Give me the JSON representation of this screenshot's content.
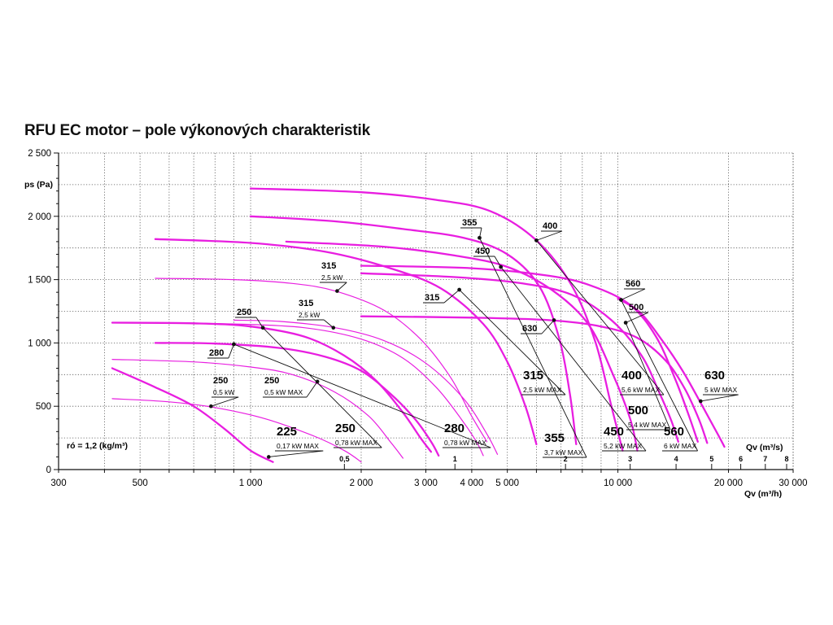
{
  "chart_data": {
    "type": "line",
    "title": "RFU EC motor – pole výkonových charakteristik",
    "ylabel": "ps (Pa)",
    "xlabel": "Qv (m³/h)",
    "xlabel2": "Qv (m³/s)",
    "xscale": "log",
    "xlim": [
      300,
      30000
    ],
    "ylim": [
      0,
      2500
    ],
    "grid": true,
    "note": "ró = 1,2 (kg/m³)",
    "y_ticks": [
      {
        "v": 0,
        "label": "0"
      },
      {
        "v": 500,
        "label": "500"
      },
      {
        "v": 1000,
        "label": "1 000"
      },
      {
        "v": 1500,
        "label": "1 500"
      },
      {
        "v": 2000,
        "label": "2 000"
      },
      {
        "v": 2500,
        "label": "2 500"
      }
    ],
    "x_ticks": [
      {
        "v": 300,
        "label": "300"
      },
      {
        "v": 500,
        "label": "500"
      },
      {
        "v": 1000,
        "label": "1 000"
      },
      {
        "v": 2000,
        "label": "2 000"
      },
      {
        "v": 3000,
        "label": "3 000"
      },
      {
        "v": 4000,
        "label": "4 000"
      },
      {
        "v": 5000,
        "label": "5 000"
      },
      {
        "v": 10000,
        "label": "10 000"
      },
      {
        "v": 20000,
        "label": "20 000"
      },
      {
        "v": 30000,
        "label": "30 000"
      }
    ],
    "x2_ticks": [
      {
        "v": 1800,
        "label": "0,5"
      },
      {
        "v": 3600,
        "label": "1"
      },
      {
        "v": 7200,
        "label": "2"
      },
      {
        "v": 10800,
        "label": "3"
      },
      {
        "v": 14400,
        "label": "4"
      },
      {
        "v": 18000,
        "label": "5"
      },
      {
        "v": 21600,
        "label": "6"
      },
      {
        "v": 25200,
        "label": "7"
      },
      {
        "v": 28800,
        "label": "8"
      }
    ],
    "series": [
      {
        "name": "225",
        "motor": "0,17 kW MAX",
        "weight": "thick",
        "points": [
          [
            420,
            800
          ],
          [
            550,
            650
          ],
          [
            700,
            500
          ],
          [
            850,
            320
          ],
          [
            1000,
            150
          ],
          [
            1150,
            60
          ]
        ],
        "marker": [
          1120,
          100
        ]
      },
      {
        "name": "250",
        "motor": "0,5 kW",
        "weight": "thin",
        "points": [
          [
            420,
            560
          ],
          [
            600,
            535
          ],
          [
            800,
            490
          ],
          [
            1100,
            400
          ],
          [
            1500,
            260
          ],
          [
            1800,
            150
          ],
          [
            2000,
            60
          ]
        ],
        "marker": [
          780,
          500
        ]
      },
      {
        "name": "250",
        "motor": "0,5 kW MAX",
        "weight": "thin",
        "points": [
          [
            420,
            870
          ],
          [
            700,
            850
          ],
          [
            1000,
            810
          ],
          [
            1300,
            750
          ],
          [
            1700,
            610
          ],
          [
            2100,
            420
          ],
          [
            2400,
            220
          ],
          [
            2600,
            90
          ]
        ],
        "marker": [
          1520,
          695
        ]
      },
      {
        "name": "250",
        "motor": "0,78 kW MAX",
        "weight": "thick",
        "points": [
          [
            420,
            1160
          ],
          [
            700,
            1155
          ],
          [
            1000,
            1130
          ],
          [
            1400,
            1050
          ],
          [
            1800,
            900
          ],
          [
            2200,
            700
          ],
          [
            2600,
            450
          ],
          [
            2900,
            250
          ],
          [
            3100,
            140
          ]
        ],
        "marker": [
          1080,
          1120
        ]
      },
      {
        "name": "280",
        "motor": "0,78 kW MAX",
        "weight": "thick",
        "points": [
          [
            550,
            1000
          ],
          [
            800,
            995
          ],
          [
            1200,
            960
          ],
          [
            1600,
            890
          ],
          [
            2000,
            780
          ],
          [
            2400,
            600
          ],
          [
            2800,
            400
          ],
          [
            3100,
            220
          ],
          [
            3250,
            110
          ]
        ],
        "marker": [
          900,
          990
        ]
      },
      {
        "name": "280",
        "motor": "",
        "weight": "thin",
        "points": [
          [
            550,
            1160
          ],
          [
            900,
            1150
          ],
          [
            1400,
            1120
          ],
          [
            2000,
            1030
          ],
          [
            2600,
            880
          ],
          [
            3200,
            650
          ],
          [
            3700,
            420
          ],
          [
            4100,
            230
          ],
          [
            4300,
            110
          ]
        ],
        "marker": null
      },
      {
        "name": "315",
        "motor": "2,5 kW",
        "weight": "thin",
        "points": [
          [
            550,
            1510
          ],
          [
            900,
            1500
          ],
          [
            1300,
            1470
          ],
          [
            1700,
            1410
          ],
          [
            2300,
            1260
          ],
          [
            2900,
            1030
          ],
          [
            3500,
            730
          ],
          [
            4000,
            420
          ],
          [
            4400,
            220
          ]
        ],
        "marker": [
          1720,
          1410
        ]
      },
      {
        "name": "315",
        "motor": "2,5 kW",
        "weight": "thin",
        "points": [
          [
            900,
            1180
          ],
          [
            1200,
            1170
          ],
          [
            1700,
            1120
          ],
          [
            2300,
            1020
          ],
          [
            3000,
            840
          ],
          [
            3800,
            560
          ],
          [
            4400,
            280
          ],
          [
            4700,
            120
          ]
        ],
        "marker": [
          1680,
          1120
        ]
      },
      {
        "name": "315",
        "motor": "2,5 kW MAX",
        "weight": "thick",
        "points": [
          [
            550,
            1820
          ],
          [
            1000,
            1790
          ],
          [
            1600,
            1720
          ],
          [
            2400,
            1590
          ],
          [
            3300,
            1430
          ],
          [
            4300,
            1150
          ],
          [
            5000,
            850
          ],
          [
            5600,
            500
          ],
          [
            6000,
            200
          ]
        ],
        "marker": [
          3700,
          1420
        ]
      },
      {
        "name": "355",
        "motor": "3,7 kW MAX",
        "weight": "thick",
        "points": [
          [
            1000,
            2000
          ],
          [
            1700,
            1960
          ],
          [
            2600,
            1900
          ],
          [
            3800,
            1830
          ],
          [
            5000,
            1700
          ],
          [
            6100,
            1450
          ],
          [
            6900,
            1050
          ],
          [
            7400,
            600
          ],
          [
            7700,
            200
          ]
        ],
        "marker": [
          4200,
          1830
        ]
      },
      {
        "name": "400",
        "motor": "5,6 kW MAX",
        "weight": "thick",
        "points": [
          [
            1000,
            2220
          ],
          [
            2000,
            2190
          ],
          [
            3200,
            2130
          ],
          [
            4500,
            2040
          ],
          [
            6000,
            1810
          ],
          [
            7500,
            1450
          ],
          [
            8700,
            1000
          ],
          [
            9600,
            500
          ],
          [
            10300,
            150
          ]
        ],
        "marker": [
          6000,
          1810
        ]
      },
      {
        "name": "450",
        "motor": "5,2 kW MAX",
        "weight": "thick",
        "points": [
          [
            1250,
            1800
          ],
          [
            2300,
            1760
          ],
          [
            3600,
            1690
          ],
          [
            5000,
            1600
          ],
          [
            6600,
            1420
          ],
          [
            8300,
            1150
          ],
          [
            9700,
            750
          ],
          [
            10800,
            400
          ],
          [
            11300,
            150
          ]
        ],
        "marker": [
          4800,
          1600
        ]
      },
      {
        "name": "500",
        "motor": "5,4 kW MAX",
        "weight": "thick",
        "points": [
          [
            2000,
            1550
          ],
          [
            3600,
            1520
          ],
          [
            5500,
            1470
          ],
          [
            7500,
            1380
          ],
          [
            9600,
            1180
          ],
          [
            11600,
            900
          ],
          [
            13000,
            600
          ],
          [
            14000,
            380
          ],
          [
            14600,
            220
          ]
        ],
        "marker": [
          10500,
          1160
        ]
      },
      {
        "name": "560",
        "motor": "6 kW MAX",
        "weight": "thick",
        "points": [
          [
            2000,
            1610
          ],
          [
            4000,
            1590
          ],
          [
            6500,
            1530
          ],
          [
            8500,
            1450
          ],
          [
            10800,
            1300
          ],
          [
            12700,
            1050
          ],
          [
            14300,
            720
          ],
          [
            15500,
            450
          ],
          [
            16500,
            220
          ]
        ],
        "marker": [
          10200,
          1340
        ]
      },
      {
        "name": "630",
        "motor": "",
        "weight": "thick",
        "points": [
          [
            2000,
            1210
          ],
          [
            4000,
            1200
          ],
          [
            6500,
            1180
          ],
          [
            9000,
            1130
          ],
          [
            11300,
            1040
          ],
          [
            13500,
            860
          ],
          [
            15200,
            640
          ],
          [
            16600,
            400
          ],
          [
            17500,
            210
          ]
        ],
        "marker": [
          6700,
          1180
        ]
      },
      {
        "name": "630",
        "motor": "5 kW MAX",
        "weight": "thick",
        "points": [
          [
            10000,
            1350
          ],
          [
            11500,
            1240
          ],
          [
            13200,
            1020
          ],
          [
            15000,
            780
          ],
          [
            17000,
            500
          ],
          [
            18700,
            280
          ],
          [
            19500,
            180
          ]
        ],
        "marker": [
          16800,
          540
        ]
      }
    ],
    "labels": [
      {
        "text": "225",
        "sub": "0,17 kW MAX",
        "big": true,
        "series": 0,
        "ax": 340,
        "ay": 535,
        "lx": 340,
        "ly": 552
      },
      {
        "text": "250",
        "sub": "0,5 kW",
        "big": false,
        "series": 1,
        "ax": 262,
        "ay": 471,
        "lx": 262,
        "ly": 486
      },
      {
        "text": "250",
        "sub": "0,5 kW MAX",
        "big": false,
        "series": 2,
        "ax": 325,
        "ay": 471,
        "lx": 325,
        "ly": 486
      },
      {
        "text": "250",
        "sub": "",
        "big": false,
        "series": 3,
        "ax": 291,
        "ay": 387,
        "lx": 291,
        "ly": 390
      },
      {
        "text": "280",
        "sub": "",
        "big": false,
        "series": 4,
        "ax": 257,
        "ay": 437,
        "lx": 257,
        "ly": 440
      },
      {
        "text": "250",
        "sub": "0,78 kW MAX",
        "big": true,
        "series": 3,
        "ax": 412,
        "ay": 531,
        "lx": 412,
        "ly": 548
      },
      {
        "text": "280",
        "sub": "0,78 kW MAX",
        "big": true,
        "series": 4,
        "ax": 546,
        "ay": 531,
        "lx": 546,
        "ly": 548
      },
      {
        "text": "315",
        "sub": "2,5 kW",
        "big": false,
        "series": 6,
        "ax": 395,
        "ay": 330,
        "lx": 395,
        "ly": 345
      },
      {
        "text": "315",
        "sub": "2,5 kW",
        "big": false,
        "series": 7,
        "ax": 367,
        "ay": 376,
        "lx": 367,
        "ly": 391
      },
      {
        "text": "315",
        "sub": "",
        "big": false,
        "series": 8,
        "ax": 522,
        "ay": 369,
        "lx": 522,
        "ly": 372
      },
      {
        "text": "315",
        "sub": "2,5 kW MAX",
        "big": true,
        "series": 8,
        "ax": 643,
        "ay": 466,
        "lx": 643,
        "ly": 483
      },
      {
        "text": "355",
        "sub": "",
        "big": false,
        "series": 9,
        "ax": 568,
        "ay": 277,
        "lx": 568,
        "ly": 280
      },
      {
        "text": "355",
        "sub": "3,7 kW MAX",
        "big": true,
        "series": 9,
        "ax": 669,
        "ay": 543,
        "lx": 669,
        "ly": 560
      },
      {
        "text": "400",
        "sub": "",
        "big": false,
        "series": 10,
        "ax": 667,
        "ay": 281,
        "lx": 667,
        "ly": 284
      },
      {
        "text": "400",
        "sub": "5,6 kW MAX",
        "big": true,
        "series": 10,
        "ax": 764,
        "ay": 466,
        "lx": 764,
        "ly": 483
      },
      {
        "text": "450",
        "sub": "",
        "big": false,
        "series": 11,
        "ax": 584,
        "ay": 312,
        "lx": 584,
        "ly": 315
      },
      {
        "text": "450",
        "sub": "5,2 kW MAX",
        "big": true,
        "series": 11,
        "ax": 742,
        "ay": 535,
        "lx": 742,
        "ly": 552
      },
      {
        "text": "500",
        "sub": "",
        "big": false,
        "series": 12,
        "ax": 773,
        "ay": 381,
        "lx": 773,
        "ly": 384
      },
      {
        "text": "500",
        "sub": "5,4 kW MAX",
        "big": true,
        "series": 12,
        "ax": 772,
        "ay": 509,
        "lx": 772,
        "ly": 526
      },
      {
        "text": "560",
        "sub": "",
        "big": false,
        "series": 13,
        "ax": 769,
        "ay": 352,
        "lx": 769,
        "ly": 355
      },
      {
        "text": "560",
        "sub": "6 kW MAX",
        "big": true,
        "series": 13,
        "ax": 816,
        "ay": 535,
        "lx": 816,
        "ly": 552
      },
      {
        "text": "630",
        "sub": "",
        "big": false,
        "series": 14,
        "ax": 642,
        "ay": 407,
        "lx": 642,
        "ly": 410
      },
      {
        "text": "630",
        "sub": "5 kW MAX",
        "big": true,
        "series": 15,
        "ax": 866,
        "ay": 466,
        "lx": 866,
        "ly": 483
      }
    ]
  }
}
